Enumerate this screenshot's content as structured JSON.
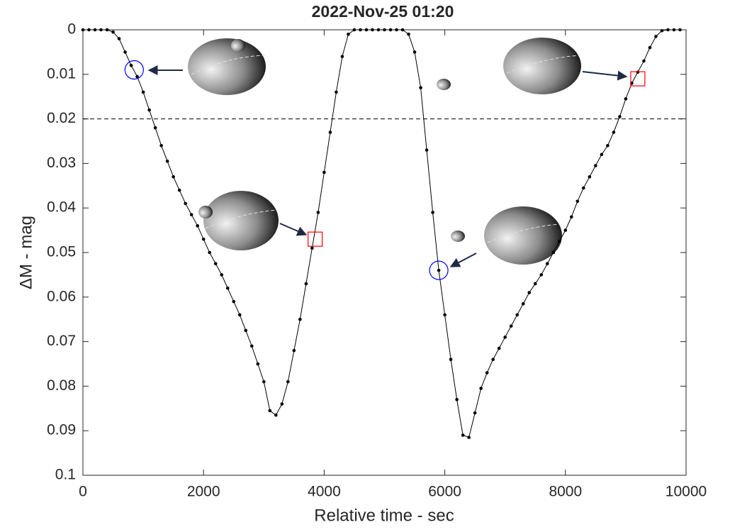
{
  "chart_data": {
    "type": "line",
    "title": "2022-Nov-25 01:20",
    "x_label": "Relative time - sec",
    "y_label": "ΔM - mag",
    "x": [
      0,
      100,
      200,
      300,
      400,
      500,
      600,
      700,
      800,
      900,
      1000,
      1100,
      1200,
      1300,
      1400,
      1500,
      1600,
      1700,
      1800,
      1900,
      2000,
      2100,
      2200,
      2300,
      2400,
      2500,
      2600,
      2700,
      2800,
      2900,
      3000,
      3100,
      3200,
      3300,
      3400,
      3500,
      3600,
      3700,
      3800,
      3900,
      4000,
      4100,
      4200,
      4300,
      4400,
      4500,
      4600,
      4700,
      4800,
      4900,
      5000,
      5100,
      5200,
      5300,
      5400,
      5500,
      5600,
      5700,
      5800,
      5900,
      6000,
      6100,
      6200,
      6300,
      6400,
      6500,
      6600,
      6700,
      6800,
      6900,
      7000,
      7100,
      7200,
      7300,
      7400,
      7500,
      7600,
      7700,
      7800,
      7900,
      8000,
      8100,
      8200,
      8300,
      8400,
      8500,
      8600,
      8700,
      8800,
      8900,
      9000,
      9100,
      9200,
      9300,
      9400,
      9500,
      9600,
      9700,
      9800,
      9900
    ],
    "values": [
      0,
      0,
      0,
      0,
      0,
      0.0005,
      0.002,
      0.005,
      0.008,
      0.0105,
      0.014,
      0.018,
      0.022,
      0.026,
      0.0295,
      0.033,
      0.036,
      0.039,
      0.0415,
      0.044,
      0.047,
      0.05,
      0.0525,
      0.055,
      0.058,
      0.061,
      0.064,
      0.0675,
      0.071,
      0.075,
      0.079,
      0.0855,
      0.0865,
      0.084,
      0.079,
      0.072,
      0.065,
      0.057,
      0.049,
      0.041,
      0.032,
      0.023,
      0.014,
      0.006,
      0.001,
      0,
      0,
      0,
      0,
      0,
      0,
      0,
      0,
      0,
      0.001,
      0.005,
      0.013,
      0.027,
      0.041,
      0.054,
      0.064,
      0.074,
      0.083,
      0.091,
      0.0915,
      0.086,
      0.0805,
      0.077,
      0.074,
      0.0715,
      0.069,
      0.0665,
      0.064,
      0.0615,
      0.059,
      0.057,
      0.055,
      0.0525,
      0.05,
      0.0475,
      0.045,
      0.042,
      0.0385,
      0.0355,
      0.033,
      0.0305,
      0.028,
      0.026,
      0.023,
      0.0195,
      0.0155,
      0.012,
      0.0095,
      0.007,
      0.004,
      0.0015,
      0.0002,
      0,
      0,
      0
    ],
    "color": "#000000",
    "xlim": [
      0,
      10000
    ],
    "xticks": [
      0,
      2000,
      4000,
      6000,
      8000,
      10000
    ],
    "ylim": [
      0,
      0.1
    ],
    "yticks": [
      0,
      0.01,
      0.02,
      0.03,
      0.04,
      0.05,
      0.06,
      0.07,
      0.08,
      0.09,
      0.1
    ],
    "y_reversed": true,
    "reference_line": {
      "value": 0.02,
      "style": "dashed"
    },
    "highlights": [
      {
        "x": 850,
        "y": 0.009,
        "shape": "circle",
        "color": "#0000ff"
      },
      {
        "x": 3850,
        "y": 0.047,
        "shape": "square",
        "color": "#ff0000"
      },
      {
        "x": 5900,
        "y": 0.054,
        "shape": "circle",
        "color": "#0000ff"
      },
      {
        "x": 9200,
        "y": 0.011,
        "shape": "square",
        "color": "#ff0000"
      }
    ]
  }
}
